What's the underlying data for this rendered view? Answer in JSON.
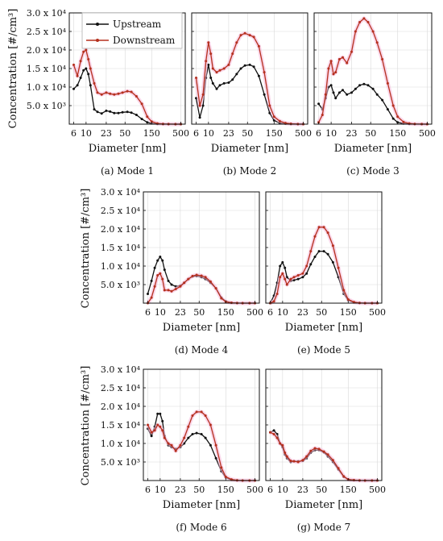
{
  "figure": {
    "y_tick_labels": [
      "5.0 x 10³",
      "1.0 x 10⁴",
      "1.5 x 10⁴",
      "2.0 x 10⁴",
      "2.5 x 10⁴",
      "3.0 x 10⁴"
    ],
    "x_tick_labels": [
      "6",
      "10",
      "23",
      "50",
      "150",
      "500"
    ],
    "y_axis_title": "Concentration [#/cm³]",
    "x_axis_title": "Diameter [nm]",
    "legend": {
      "upstream": "Upstream",
      "downstream": "Downstream"
    },
    "colors": {
      "upstream": "#111111",
      "downstream": "#b5301e",
      "glow": "#f6b6d8",
      "grid": "#d9d9d9"
    }
  },
  "chart_data": [
    {
      "type": "line",
      "panel": "a",
      "caption": "(a) Mode 1",
      "xlabel": "Diameter [nm]",
      "ylabel": "Concentration [#/cm³]",
      "x_scale": "log",
      "xlim": [
        5,
        600
      ],
      "ylim": [
        0,
        30000
      ],
      "x": [
        6,
        7,
        8,
        9,
        10,
        11,
        12,
        14,
        16,
        19,
        23,
        27,
        32,
        38,
        45,
        55,
        65,
        80,
        100,
        125,
        150,
        190,
        240,
        300,
        400,
        500
      ],
      "series": [
        {
          "name": "Upstream",
          "values": [
            9500,
            10500,
            12500,
            14500,
            15000,
            13500,
            10500,
            4000,
            3300,
            2900,
            3600,
            3400,
            3000,
            3000,
            3200,
            3300,
            3100,
            2500,
            1400,
            500,
            200,
            50,
            20,
            10,
            10,
            10
          ]
        },
        {
          "name": "Downstream",
          "values": [
            16000,
            13000,
            17000,
            19500,
            20000,
            17500,
            15000,
            11000,
            8500,
            8000,
            8500,
            8200,
            8000,
            8200,
            8500,
            8900,
            8700,
            7500,
            5500,
            2000,
            700,
            200,
            50,
            20,
            10,
            10
          ]
        }
      ]
    },
    {
      "type": "line",
      "panel": "b",
      "caption": "(b) Mode 2",
      "xlabel": "Diameter [nm]",
      "x_scale": "log",
      "xlim": [
        5,
        600
      ],
      "ylim": [
        0,
        30000
      ],
      "x": [
        6,
        7,
        8,
        9,
        10,
        11,
        12,
        14,
        16,
        19,
        23,
        27,
        32,
        38,
        45,
        55,
        65,
        80,
        100,
        125,
        150,
        190,
        240,
        300,
        400,
        500
      ],
      "series": [
        {
          "name": "Upstream",
          "values": [
            7000,
            1800,
            5000,
            12500,
            16000,
            12500,
            11000,
            9500,
            10500,
            11000,
            11200,
            12000,
            13500,
            15000,
            15800,
            16000,
            15500,
            13000,
            8000,
            3000,
            1000,
            300,
            100,
            30,
            10,
            10
          ]
        },
        {
          "name": "Downstream",
          "values": [
            12500,
            5000,
            8000,
            17000,
            22000,
            19000,
            15000,
            14000,
            14500,
            15000,
            16000,
            19000,
            22000,
            24000,
            24500,
            24000,
            23500,
            21000,
            14000,
            5000,
            2000,
            800,
            300,
            100,
            20,
            10
          ]
        }
      ]
    },
    {
      "type": "line",
      "panel": "c",
      "caption": "(c) Mode 3",
      "xlabel": "Diameter [nm]",
      "x_scale": "log",
      "xlim": [
        5,
        600
      ],
      "ylim": [
        0,
        30000
      ],
      "x": [
        6,
        7,
        8,
        9,
        10,
        11,
        12,
        14,
        16,
        19,
        23,
        27,
        32,
        38,
        45,
        55,
        65,
        80,
        100,
        125,
        150,
        190,
        240,
        300,
        400,
        500
      ],
      "series": [
        {
          "name": "Upstream",
          "values": [
            5500,
            4000,
            7000,
            10000,
            10500,
            8500,
            7000,
            8500,
            9200,
            8000,
            8500,
            9500,
            10500,
            10800,
            10500,
            9500,
            8000,
            6500,
            4000,
            1500,
            500,
            150,
            50,
            20,
            10,
            10
          ]
        },
        {
          "name": "Downstream",
          "values": [
            500,
            2500,
            8000,
            15000,
            17000,
            13500,
            14000,
            17500,
            18000,
            16500,
            19500,
            25000,
            27500,
            28500,
            27500,
            25000,
            22000,
            17500,
            11000,
            5000,
            2000,
            600,
            200,
            50,
            20,
            10
          ]
        }
      ]
    },
    {
      "type": "line",
      "panel": "d",
      "caption": "(d) Mode 4",
      "xlabel": "Diameter [nm]",
      "x_scale": "log",
      "xlim": [
        5,
        600
      ],
      "ylim": [
        0,
        30000
      ],
      "x": [
        6,
        7,
        8,
        9,
        10,
        11,
        12,
        14,
        16,
        19,
        23,
        27,
        32,
        38,
        45,
        55,
        65,
        80,
        100,
        125,
        150,
        190,
        240,
        300,
        400,
        500
      ],
      "series": [
        {
          "name": "Upstream",
          "values": [
            2500,
            6000,
            9500,
            11500,
            12500,
            11500,
            9000,
            6000,
            5000,
            4500,
            4700,
            5500,
            6500,
            7200,
            7300,
            7000,
            6500,
            5500,
            4000,
            1500,
            500,
            100,
            30,
            10,
            10,
            10
          ]
        },
        {
          "name": "Downstream",
          "values": [
            0,
            1500,
            4500,
            7500,
            8000,
            6500,
            3500,
            3500,
            3200,
            3800,
            4500,
            5500,
            6500,
            7300,
            7600,
            7400,
            7000,
            5800,
            4000,
            1300,
            400,
            100,
            30,
            10,
            10,
            10
          ]
        }
      ]
    },
    {
      "type": "line",
      "panel": "e",
      "caption": "(e) Mode 5",
      "xlabel": "Diameter [nm]",
      "x_scale": "log",
      "xlim": [
        5,
        600
      ],
      "ylim": [
        0,
        30000
      ],
      "x": [
        6,
        7,
        8,
        9,
        10,
        11,
        12,
        14,
        16,
        19,
        23,
        27,
        32,
        38,
        45,
        55,
        65,
        80,
        100,
        125,
        150,
        190,
        240,
        300,
        400,
        500
      ],
      "series": [
        {
          "name": "Upstream",
          "values": [
            0,
            2000,
            5500,
            10000,
            11000,
            9500,
            7000,
            6000,
            6200,
            6500,
            7000,
            8000,
            10500,
            12500,
            14000,
            14000,
            13200,
            11000,
            7000,
            2500,
            800,
            200,
            50,
            10,
            10,
            10
          ]
        },
        {
          "name": "Downstream",
          "values": [
            0,
            500,
            2500,
            7000,
            8000,
            6500,
            5000,
            6500,
            7000,
            7500,
            8000,
            10000,
            14000,
            18000,
            20500,
            20500,
            19000,
            15500,
            9500,
            3500,
            1000,
            300,
            50,
            10,
            10,
            10
          ]
        }
      ]
    },
    {
      "type": "line",
      "panel": "f",
      "caption": "(f) Mode 6",
      "xlabel": "Diameter [nm]",
      "x_scale": "log",
      "xlim": [
        5,
        600
      ],
      "ylim": [
        0,
        30000
      ],
      "x": [
        6,
        7,
        8,
        9,
        10,
        11,
        12,
        14,
        16,
        19,
        23,
        27,
        32,
        38,
        45,
        55,
        65,
        80,
        100,
        125,
        150,
        190,
        240,
        300,
        400,
        500
      ],
      "series": [
        {
          "name": "Upstream",
          "values": [
            14000,
            12000,
            14500,
            18000,
            18000,
            16000,
            12000,
            9500,
            9000,
            8500,
            9000,
            10000,
            11500,
            12500,
            12800,
            12500,
            11500,
            9500,
            6000,
            2500,
            800,
            200,
            50,
            10,
            10,
            10
          ]
        },
        {
          "name": "Downstream",
          "values": [
            15000,
            13000,
            13500,
            15000,
            14500,
            13500,
            11500,
            10000,
            9500,
            8000,
            9500,
            11500,
            14500,
            17500,
            18500,
            18500,
            17500,
            15000,
            9500,
            3500,
            1000,
            300,
            50,
            10,
            10,
            10
          ]
        }
      ]
    },
    {
      "type": "line",
      "panel": "g",
      "caption": "(g) Mode 7",
      "xlabel": "Diameter [nm]",
      "x_scale": "log",
      "xlim": [
        5,
        600
      ],
      "ylim": [
        0,
        30000
      ],
      "x": [
        6,
        7,
        8,
        9,
        10,
        11,
        12,
        14,
        16,
        19,
        23,
        27,
        32,
        38,
        45,
        55,
        65,
        80,
        100,
        125,
        150,
        190,
        240,
        300,
        400,
        500
      ],
      "series": [
        {
          "name": "Upstream",
          "values": [
            13000,
            13500,
            12500,
            10000,
            9000,
            7000,
            6000,
            5000,
            5200,
            5200,
            5300,
            6000,
            7500,
            8200,
            8200,
            7600,
            6500,
            5000,
            3000,
            1000,
            300,
            100,
            20,
            10,
            10,
            10
          ]
        },
        {
          "name": "Downstream",
          "values": [
            13000,
            12500,
            11500,
            10000,
            9500,
            7500,
            6500,
            5300,
            5200,
            5000,
            5500,
            6500,
            8000,
            8700,
            8500,
            7800,
            7000,
            5500,
            3300,
            1100,
            300,
            100,
            20,
            10,
            10,
            10
          ]
        }
      ]
    }
  ]
}
